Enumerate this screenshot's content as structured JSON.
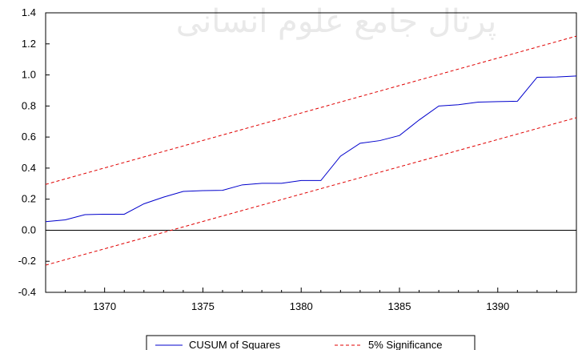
{
  "chart_data": {
    "type": "line",
    "xlim": [
      1367,
      1394
    ],
    "ylim": [
      -0.4,
      1.4
    ],
    "x_ticks": [
      1370,
      1375,
      1380,
      1385,
      1390
    ],
    "x_tick_labels": [
      "1370",
      "1375",
      "1380",
      "1385",
      "1390"
    ],
    "y_ticks": [
      -0.4,
      -0.2,
      0.0,
      0.2,
      0.4,
      0.6,
      0.8,
      1.0,
      1.2,
      1.4
    ],
    "y_tick_labels": [
      "-0.4",
      "-0.2",
      "0.0",
      "0.2",
      "0.4",
      "0.6",
      "0.8",
      "1.0",
      "1.2",
      "1.4"
    ],
    "grid": false,
    "zero_line": true,
    "legend_position": "bottom-center",
    "x": [
      1367,
      1368,
      1369,
      1370,
      1371,
      1372,
      1373,
      1374,
      1375,
      1376,
      1377,
      1378,
      1379,
      1380,
      1381,
      1382,
      1383,
      1384,
      1385,
      1386,
      1387,
      1388,
      1389,
      1390,
      1391,
      1392,
      1393,
      1394
    ],
    "series": [
      {
        "name": "CUSUM of Squares",
        "color": "#0000cc",
        "style": "solid",
        "values": [
          0.055,
          0.067,
          0.1,
          0.103,
          0.103,
          0.17,
          0.213,
          0.25,
          0.255,
          0.257,
          0.292,
          0.302,
          0.302,
          0.32,
          0.32,
          0.477,
          0.56,
          0.577,
          0.61,
          0.71,
          0.8,
          0.808,
          0.825,
          0.828,
          0.831,
          0.985,
          0.987,
          0.993
        ]
      },
      {
        "name": "5% Significance",
        "color": "#e00000",
        "style": "dashed",
        "lines": [
          {
            "x": [
              1367,
              1394
            ],
            "y": [
              0.295,
              1.25
            ]
          },
          {
            "x": [
              1367,
              1394
            ],
            "y": [
              -0.225,
              0.725
            ]
          }
        ]
      }
    ]
  },
  "watermark_text": "پرتال جامع علوم انسانی"
}
